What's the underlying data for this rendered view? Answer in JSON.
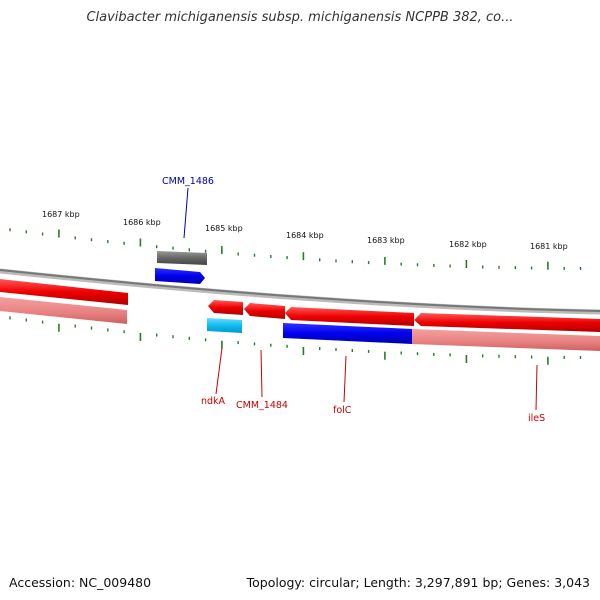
{
  "title": "Clavibacter michiganensis subsp. michiganensis NCPPB 382, co...",
  "footer": {
    "accession": "Accession: NC_009480",
    "summary": "Topology: circular; Length: 3,297,891 bp; Genes: 3,043"
  },
  "scale_labels": [
    "1687 kbp",
    "1686 kbp",
    "1685 kbp",
    "1684 kbp",
    "1683 kbp",
    "1682 kbp",
    "1681 kbp"
  ],
  "gene_labels": {
    "cmm1486": "CMM_1486",
    "ndka": "ndkA",
    "cmm1484": "CMM_1484",
    "folc": "folC",
    "iles": "ileS"
  },
  "colors": {
    "forward_label": "#0000aa",
    "reverse_label": "#cc0000",
    "tick": "#2a7a2a",
    "backbone": "#888888"
  }
}
